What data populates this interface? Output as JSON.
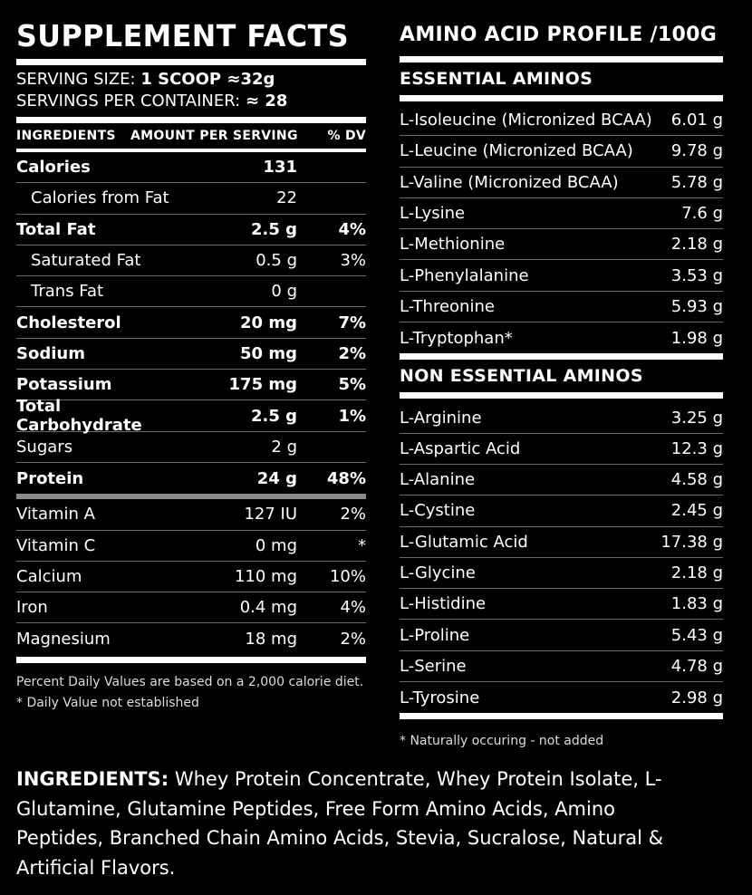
{
  "supplement": {
    "title": "SUPPLEMENT FACTS",
    "serving_size_label": "SERVING SIZE:",
    "serving_size_value": "1 SCOOP ≈32g",
    "servings_label": "SERVINGS PER CONTAINER:",
    "servings_value": "≈ 28",
    "headers": {
      "ingredients": "INGREDIENTS",
      "amount": "AMOUNT PER SERVING",
      "dv": "% DV"
    },
    "rows": [
      {
        "name": "Calories",
        "amount": "131",
        "dv": "",
        "bold": true,
        "sub": false
      },
      {
        "name": "Calories from Fat",
        "amount": "22",
        "dv": "",
        "bold": false,
        "sub": true
      },
      {
        "name": "Total Fat",
        "amount": "2.5 g",
        "dv": "4%",
        "bold": true,
        "sub": false
      },
      {
        "name": "Saturated Fat",
        "amount": "0.5 g",
        "dv": "3%",
        "bold": false,
        "sub": true
      },
      {
        "name": "Trans Fat",
        "amount": "0 g",
        "dv": "",
        "bold": false,
        "sub": true
      },
      {
        "name": "Cholesterol",
        "amount": "20 mg",
        "dv": "7%",
        "bold": true,
        "sub": false
      },
      {
        "name": "Sodium",
        "amount": "50 mg",
        "dv": "2%",
        "bold": true,
        "sub": false
      },
      {
        "name": "Potassium",
        "amount": "175 mg",
        "dv": "5%",
        "bold": true,
        "sub": false
      },
      {
        "name": "Total Carbohydrate",
        "amount": "2.5 g",
        "dv": "1%",
        "bold": true,
        "sub": false
      },
      {
        "name": "Sugars",
        "amount": "2 g",
        "dv": "",
        "bold": false,
        "sub": false
      },
      {
        "name": "Protein",
        "amount": "24 g",
        "dv": "48%",
        "bold": true,
        "sub": false
      }
    ],
    "vitamins": [
      {
        "name": "Vitamin A",
        "amount": "127 IU",
        "dv": "2%"
      },
      {
        "name": "Vitamin C",
        "amount": "0 mg",
        "dv": "*"
      },
      {
        "name": "Calcium",
        "amount": "110 mg",
        "dv": "10%"
      },
      {
        "name": "Iron",
        "amount": "0.4 mg",
        "dv": "4%"
      },
      {
        "name": "Magnesium",
        "amount": "18 mg",
        "dv": "2%"
      }
    ],
    "footnote1": "Percent Daily Values are based on a 2,000 calorie diet.",
    "footnote2": "* Daily Value not established"
  },
  "amino": {
    "title": "AMINO ACID PROFILE /100G",
    "essential_title": "ESSENTIAL AMINOS",
    "essential": [
      {
        "name": "L-Isoleucine (Micronized BCAA)",
        "value": "6.01 g"
      },
      {
        "name": "L-Leucine (Micronized BCAA)",
        "value": "9.78 g"
      },
      {
        "name": "L-Valine (Micronized BCAA)",
        "value": "5.78 g"
      },
      {
        "name": "L-Lysine",
        "value": "7.6 g"
      },
      {
        "name": "L-Methionine",
        "value": "2.18 g"
      },
      {
        "name": "L-Phenylalanine",
        "value": "3.53 g"
      },
      {
        "name": "L-Threonine",
        "value": "5.93 g"
      },
      {
        "name": "L-Tryptophan*",
        "value": "1.98 g"
      }
    ],
    "nonessential_title": "NON ESSENTIAL AMINOS",
    "nonessential": [
      {
        "name": "L-Arginine",
        "value": "3.25 g"
      },
      {
        "name": "L-Aspartic Acid",
        "value": "12.3 g"
      },
      {
        "name": "L-Alanine",
        "value": "4.58 g"
      },
      {
        "name": "L-Cystine",
        "value": "2.45 g"
      },
      {
        "name": "L-Glutamic Acid",
        "value": "17.38 g"
      },
      {
        "name": "L-Glycine",
        "value": "2.18 g"
      },
      {
        "name": "L-Histidine",
        "value": "1.83 g"
      },
      {
        "name": "L-Proline",
        "value": "5.43 g"
      },
      {
        "name": "L-Serine",
        "value": "4.78 g"
      },
      {
        "name": "L-Tyrosine",
        "value": "2.98 g"
      }
    ],
    "footnote": "* Naturally occuring - not added"
  },
  "ingredients": {
    "label": "INGREDIENTS:",
    "text": " Whey Protein Concentrate, Whey Protein Isolate, L-Glutamine, Glutamine Peptides, Free Form Amino Acids, Amino Peptides, Branched Chain Amino Acids, Stevia, Sucralose, Natural & Artificial Flavors."
  }
}
